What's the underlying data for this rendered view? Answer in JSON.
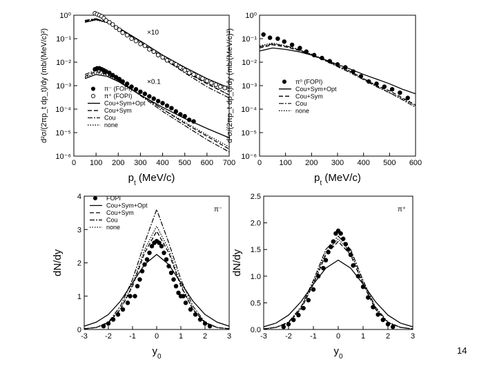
{
  "slide": {
    "page_number": "14"
  },
  "chart_data": [
    {
      "id": "p1",
      "type": "scatter",
      "title": "",
      "xlabel": "p_t (MeV/c)",
      "ylabel": "d²σ/(2πp_t dp_t)/dy (mb/(MeV/c)²)",
      "xlim": [
        0,
        700
      ],
      "ylim_log10": [
        -6,
        0
      ],
      "xticks": [
        "0",
        "100",
        "200",
        "300",
        "400",
        "500",
        "600",
        "700"
      ],
      "yticks": [
        "10⁰",
        "10⁻¹",
        "10⁻²",
        "10⁻³",
        "10⁻⁴",
        "10⁻⁵",
        "10⁻⁶"
      ],
      "annotations": [
        "×10",
        "×0.1"
      ],
      "legend": [
        "π⁻ (FOPI)",
        "π⁺ (FOPI)",
        "Cou+Sym+Opt",
        "Cou+Sym",
        "Cou",
        "none"
      ],
      "series": [
        {
          "name": "π⁻ (FOPI)",
          "marker": "filled",
          "x": [
            95,
            105,
            115,
            125,
            135,
            145,
            160,
            175,
            190,
            205,
            220,
            240,
            260,
            280,
            300,
            320,
            340,
            360,
            380,
            400,
            420,
            440,
            460,
            480,
            500,
            520,
            540
          ],
          "y": [
            0.005,
            0.0055,
            0.0055,
            0.005,
            0.0045,
            0.004,
            0.0035,
            0.0028,
            0.0023,
            0.0019,
            0.0015,
            0.0012,
            0.0009,
            0.0007,
            0.00055,
            0.00045,
            0.00035,
            0.00028,
            0.00022,
            0.00018,
            0.00014,
            0.00011,
            8e-05,
            6e-05,
            5e-05,
            3.5e-05,
            3e-05
          ]
        },
        {
          "name": "π⁺ (FOPI)",
          "marker": "open",
          "x": [
            95,
            105,
            115,
            125,
            135,
            145,
            160,
            175,
            190,
            205,
            220,
            240,
            260,
            280,
            300,
            320,
            340,
            360,
            380,
            400,
            420,
            440,
            460,
            480,
            500,
            520,
            540,
            560,
            580,
            600,
            620,
            640,
            660,
            680
          ],
          "y": [
            1.2,
            1.1,
            1.0,
            0.9,
            0.75,
            0.6,
            0.5,
            0.4,
            0.3,
            0.24,
            0.18,
            0.14,
            0.1,
            0.08,
            0.06,
            0.05,
            0.035,
            0.028,
            0.02,
            0.016,
            0.012,
            0.01,
            0.008,
            0.006,
            0.0045,
            0.0035,
            0.003,
            0.0025,
            0.002,
            0.0016,
            0.0013,
            0.0011,
            0.0009,
            0.0008
          ]
        },
        {
          "name": "Cou+Sym+Opt",
          "line": "solid",
          "group": "upper",
          "x": [
            50,
            100,
            150,
            200,
            300,
            400,
            500,
            600,
            700
          ],
          "y": [
            0.5,
            0.65,
            0.5,
            0.3,
            0.08,
            0.02,
            0.006,
            0.002,
            0.0008
          ]
        },
        {
          "name": "Cou+Sym",
          "line": "dashed",
          "group": "upper",
          "x": [
            50,
            100,
            150,
            200,
            300,
            400,
            500,
            600,
            700
          ],
          "y": [
            0.55,
            0.7,
            0.5,
            0.28,
            0.07,
            0.016,
            0.004,
            0.0012,
            0.0004
          ]
        },
        {
          "name": "Cou",
          "line": "dashdot",
          "group": "upper",
          "x": [
            50,
            100,
            150,
            200,
            300,
            400,
            500,
            600,
            700
          ],
          "y": [
            0.6,
            0.72,
            0.5,
            0.27,
            0.065,
            0.015,
            0.0035,
            0.0009,
            0.0003
          ]
        },
        {
          "name": "none",
          "line": "dotted",
          "group": "upper",
          "x": [
            50,
            100,
            150,
            200,
            300,
            400,
            500,
            600,
            700
          ],
          "y": [
            0.5,
            0.62,
            0.48,
            0.28,
            0.07,
            0.017,
            0.0045,
            0.0013,
            0.0004
          ]
        },
        {
          "name": "Cou+Sym+Opt",
          "line": "solid",
          "group": "lower",
          "x": [
            50,
            100,
            150,
            200,
            300,
            400,
            500,
            600,
            700
          ],
          "y": [
            0.002,
            0.003,
            0.0025,
            0.0015,
            0.0004,
            0.00012,
            4e-05,
            1.5e-05,
            6e-06
          ]
        },
        {
          "name": "Cou+Sym",
          "line": "dashed",
          "group": "lower",
          "x": [
            50,
            100,
            150,
            200,
            300,
            400,
            500,
            600,
            700
          ],
          "y": [
            0.0025,
            0.004,
            0.003,
            0.0017,
            0.0004,
            0.0001,
            2.5e-05,
            7e-06,
            2e-06
          ]
        },
        {
          "name": "Cou",
          "line": "dashdot",
          "group": "lower",
          "x": [
            50,
            100,
            150,
            200,
            300,
            400,
            500,
            600,
            700
          ],
          "y": [
            0.003,
            0.0045,
            0.0033,
            0.0018,
            0.00038,
            8e-05,
            2e-05,
            5e-06,
            1.5e-06
          ]
        },
        {
          "name": "none",
          "line": "dotted",
          "group": "lower",
          "x": [
            50,
            100,
            150,
            200,
            300,
            400,
            500,
            600,
            700
          ],
          "y": [
            0.0022,
            0.0035,
            0.0028,
            0.0016,
            0.0004,
            0.0001,
            2.8e-05,
            8e-06,
            2.5e-06
          ]
        }
      ]
    },
    {
      "id": "p2",
      "type": "scatter",
      "title": "",
      "xlabel": "p_t (MeV/c)",
      "ylabel": "d²σ/(2πp_t dp_t)/dy (mb/(MeV/c)²)",
      "xlim": [
        0,
        600
      ],
      "ylim_log10": [
        -6,
        0
      ],
      "xticks": [
        "0",
        "100",
        "200",
        "300",
        "400",
        "500",
        "600"
      ],
      "yticks": [
        "10⁰",
        "10⁻¹",
        "10⁻²",
        "10⁻³",
        "10⁻⁴",
        "10⁻⁵",
        "10⁻⁶"
      ],
      "annotations": [],
      "legend": [
        "π⁰ (FOPI)",
        "Cou+Sym+Opt",
        "Cou+Sym",
        "Cou",
        "none"
      ],
      "series": [
        {
          "name": "π⁰ (FOPI)",
          "marker": "filled",
          "x": [
            15,
            40,
            70,
            95,
            125,
            155,
            180,
            210,
            240,
            270,
            300,
            330,
            360,
            390,
            420,
            450,
            480,
            510,
            540,
            570
          ],
          "y": [
            0.15,
            0.11,
            0.1,
            0.075,
            0.055,
            0.04,
            0.028,
            0.02,
            0.015,
            0.011,
            0.008,
            0.006,
            0.004,
            0.0025,
            0.0015,
            0.0012,
            0.0009,
            0.0007,
            0.0005,
            0.0003
          ]
        },
        {
          "name": "Cou+Sym+Opt",
          "line": "solid",
          "x": [
            0,
            50,
            100,
            150,
            200,
            250,
            300,
            350,
            400,
            450,
            500,
            550,
            600
          ],
          "y": [
            0.03,
            0.04,
            0.035,
            0.028,
            0.02,
            0.013,
            0.008,
            0.005,
            0.003,
            0.0019,
            0.0012,
            0.0007,
            0.00045
          ]
        },
        {
          "name": "Cou+Sym",
          "line": "dashed",
          "x": [
            0,
            50,
            100,
            150,
            200,
            250,
            300,
            350,
            400,
            450,
            500,
            550,
            600
          ],
          "y": [
            0.04,
            0.055,
            0.045,
            0.032,
            0.02,
            0.012,
            0.007,
            0.004,
            0.002,
            0.001,
            0.0006,
            0.0003,
            0.00015
          ]
        },
        {
          "name": "Cou",
          "line": "dashdot",
          "x": [
            0,
            50,
            100,
            150,
            200,
            250,
            300,
            350,
            400,
            450,
            500,
            550,
            600
          ],
          "y": [
            0.045,
            0.06,
            0.05,
            0.034,
            0.021,
            0.012,
            0.0065,
            0.0035,
            0.0018,
            0.0009,
            0.0005,
            0.00025,
            0.00012
          ]
        },
        {
          "name": "none",
          "line": "dotted",
          "x": [
            0,
            50,
            100,
            150,
            200,
            250,
            300,
            350,
            400,
            450,
            500,
            550,
            600
          ],
          "y": [
            0.05,
            0.065,
            0.05,
            0.035,
            0.022,
            0.013,
            0.007,
            0.004,
            0.002,
            0.001,
            0.0005,
            0.00027,
            0.00014
          ]
        }
      ]
    },
    {
      "id": "p3",
      "type": "scatter",
      "title": "",
      "xlabel": "y_0",
      "ylabel": "dN/dy",
      "xlim": [
        -3,
        3
      ],
      "ylim": [
        0,
        4
      ],
      "xticks": [
        "-3",
        "-2",
        "-1",
        "0",
        "1",
        "2",
        "3"
      ],
      "yticks": [
        "0",
        "1",
        "2",
        "3",
        "4"
      ],
      "annotations": [
        "π⁻"
      ],
      "legend": [
        "FOPI",
        "Cou+Sym+Opt",
        "Cou+Sym",
        "Cou",
        "none"
      ],
      "series": [
        {
          "name": "FOPI",
          "marker": "filled",
          "x": [
            -2.2,
            -2.0,
            -1.8,
            -1.6,
            -1.4,
            -1.2,
            -1.1,
            -0.9,
            -0.8,
            -0.7,
            -0.6,
            -0.5,
            -0.4,
            -0.3,
            -0.2,
            -0.1,
            0.0,
            0.1,
            0.2,
            0.3,
            0.4,
            0.5,
            0.6,
            0.7,
            0.8,
            0.9,
            1.0,
            1.1,
            1.2,
            1.4,
            1.6,
            1.8,
            2.0,
            2.2
          ],
          "y": [
            0.1,
            0.18,
            0.3,
            0.45,
            0.6,
            0.8,
            1.0,
            1.0,
            1.3,
            1.5,
            1.75,
            1.95,
            2.1,
            2.3,
            2.5,
            2.6,
            2.65,
            2.6,
            2.5,
            2.3,
            2.1,
            1.9,
            1.7,
            1.5,
            1.3,
            1.1,
            1.0,
            1.0,
            0.8,
            0.6,
            0.45,
            0.3,
            0.18,
            0.1
          ]
        },
        {
          "name": "Cou+Sym+Opt",
          "line": "solid",
          "x": [
            -3,
            -2.5,
            -2,
            -1.5,
            -1,
            -0.5,
            0,
            0.5,
            1,
            1.5,
            2,
            2.5,
            3
          ],
          "y": [
            0.1,
            0.22,
            0.45,
            0.85,
            1.4,
            1.95,
            2.25,
            1.95,
            1.4,
            0.85,
            0.45,
            0.22,
            0.1
          ]
        },
        {
          "name": "Cou+Sym",
          "line": "dashed",
          "x": [
            -3,
            -2.5,
            -2,
            -1.5,
            -1,
            -0.5,
            0,
            0.5,
            1,
            1.5,
            2,
            2.5,
            3
          ],
          "y": [
            0.02,
            0.06,
            0.2,
            0.6,
            1.3,
            2.3,
            2.95,
            2.3,
            1.3,
            0.6,
            0.2,
            0.06,
            0.02
          ]
        },
        {
          "name": "Cou",
          "line": "dashdot",
          "x": [
            -3,
            -2.5,
            -2,
            -1.5,
            -1,
            -0.5,
            0,
            0.5,
            1,
            1.5,
            2,
            2.5,
            3
          ],
          "y": [
            0.02,
            0.06,
            0.22,
            0.7,
            1.5,
            2.6,
            3.6,
            2.6,
            1.5,
            0.7,
            0.22,
            0.06,
            0.02
          ]
        },
        {
          "name": "none",
          "line": "dotted",
          "x": [
            -3,
            -2.5,
            -2,
            -1.5,
            -1,
            -0.5,
            0,
            0.5,
            1,
            1.5,
            2,
            2.5,
            3
          ],
          "y": [
            0.02,
            0.06,
            0.2,
            0.62,
            1.35,
            2.4,
            3.1,
            2.4,
            1.35,
            0.62,
            0.2,
            0.06,
            0.02
          ]
        }
      ]
    },
    {
      "id": "p4",
      "type": "scatter",
      "title": "",
      "xlabel": "y_0",
      "ylabel": "dN/dy",
      "xlim": [
        -3,
        3
      ],
      "ylim": [
        0,
        2.5
      ],
      "xticks": [
        "-3",
        "-2",
        "-1",
        "0",
        "1",
        "2",
        "3"
      ],
      "yticks": [
        "0.0",
        "0.5",
        "1.0",
        "1.5",
        "2.0",
        "2.5"
      ],
      "annotations": [
        "π⁺"
      ],
      "legend": [],
      "series": [
        {
          "name": "FOPI",
          "marker": "filled",
          "x": [
            -2.2,
            -2.0,
            -1.8,
            -1.6,
            -1.4,
            -1.2,
            -1.0,
            -0.8,
            -0.6,
            -0.5,
            -0.4,
            -0.3,
            -0.2,
            -0.1,
            0.0,
            0.1,
            0.2,
            0.3,
            0.4,
            0.5,
            0.6,
            0.8,
            1.0,
            1.2,
            1.4,
            1.6,
            1.8,
            2.0,
            2.2
          ],
          "y": [
            0.05,
            0.1,
            0.18,
            0.27,
            0.4,
            0.55,
            0.75,
            1.0,
            1.15,
            1.3,
            1.45,
            1.55,
            1.65,
            1.8,
            1.85,
            1.8,
            1.7,
            1.6,
            1.5,
            1.4,
            1.2,
            1.0,
            0.8,
            0.6,
            0.42,
            0.28,
            0.18,
            0.1,
            0.05
          ]
        },
        {
          "name": "Cou+Sym+Opt",
          "line": "solid",
          "x": [
            -3,
            -2.5,
            -2,
            -1.5,
            -1,
            -0.5,
            0,
            0.5,
            1,
            1.5,
            2,
            2.5,
            3
          ],
          "y": [
            0.05,
            0.12,
            0.27,
            0.52,
            0.85,
            1.15,
            1.3,
            1.15,
            0.85,
            0.52,
            0.27,
            0.12,
            0.05
          ]
        },
        {
          "name": "Cou+Sym",
          "line": "dashed",
          "x": [
            -3,
            -2.5,
            -2,
            -1.5,
            -1,
            -0.5,
            0,
            0.5,
            1,
            1.5,
            2,
            2.5,
            3
          ],
          "y": [
            0.01,
            0.04,
            0.13,
            0.38,
            0.85,
            1.4,
            1.65,
            1.4,
            0.85,
            0.38,
            0.13,
            0.04,
            0.01
          ]
        },
        {
          "name": "Cou",
          "line": "dashdot",
          "x": [
            -3,
            -2.5,
            -2,
            -1.5,
            -1,
            -0.5,
            0,
            0.5,
            1,
            1.5,
            2,
            2.5,
            3
          ],
          "y": [
            0.01,
            0.04,
            0.14,
            0.42,
            0.92,
            1.5,
            1.75,
            1.5,
            0.92,
            0.42,
            0.14,
            0.04,
            0.01
          ]
        },
        {
          "name": "none",
          "line": "dotted",
          "x": [
            -3,
            -2.5,
            -2,
            -1.5,
            -1,
            -0.5,
            0,
            0.5,
            1,
            1.5,
            2,
            2.5,
            3
          ],
          "y": [
            0.01,
            0.04,
            0.13,
            0.4,
            0.88,
            1.45,
            1.7,
            1.45,
            0.88,
            0.4,
            0.13,
            0.04,
            0.01
          ]
        }
      ]
    }
  ]
}
